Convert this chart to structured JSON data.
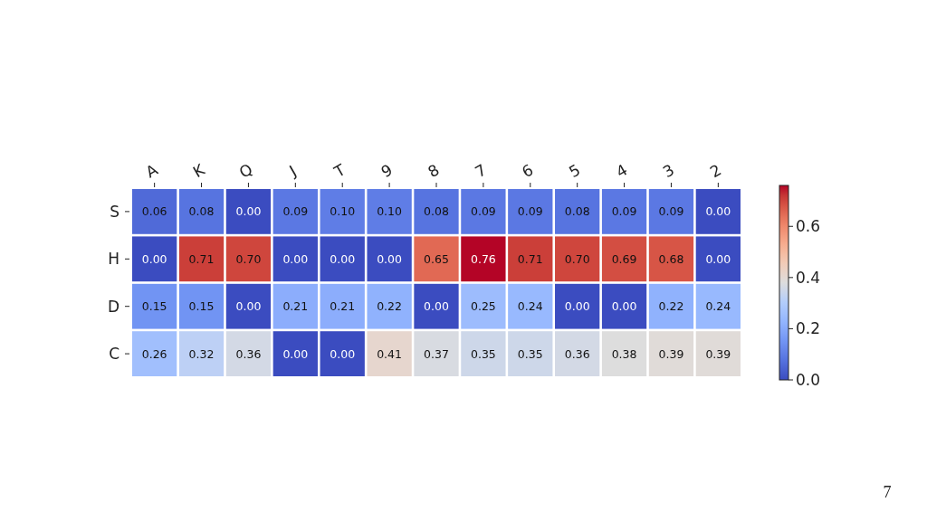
{
  "chart_data": {
    "type": "heatmap",
    "categories": [
      "A",
      "K",
      "Q",
      "J",
      "T",
      "9",
      "8",
      "7",
      "6",
      "5",
      "4",
      "3",
      "2"
    ],
    "y_categories": [
      "S",
      "H",
      "D",
      "C"
    ],
    "cells": [
      [
        0.06,
        0.08,
        0.0,
        0.09,
        0.1,
        0.1,
        0.08,
        0.09,
        0.09,
        0.08,
        0.09,
        0.09,
        0.0
      ],
      [
        0.0,
        0.71,
        0.7,
        0.0,
        0.0,
        0.0,
        0.65,
        0.76,
        0.71,
        0.7,
        0.69,
        0.68,
        0.0
      ],
      [
        0.15,
        0.15,
        0.0,
        0.21,
        0.21,
        0.22,
        0.0,
        0.25,
        0.24,
        0.0,
        0.0,
        0.22,
        0.24
      ],
      [
        0.26,
        0.32,
        0.36,
        0.0,
        0.0,
        0.41,
        0.37,
        0.35,
        0.35,
        0.36,
        0.38,
        0.39,
        0.39
      ]
    ],
    "cell_labels": [
      [
        "0.06",
        "0.08",
        "0.00",
        "0.09",
        "0.10",
        "0.10",
        "0.08",
        "0.09",
        "0.09",
        "0.08",
        "0.09",
        "0.09",
        "0.00"
      ],
      [
        "0.00",
        "0.71",
        "0.70",
        "0.00",
        "0.00",
        "0.00",
        "0.65",
        "0.76",
        "0.71",
        "0.70",
        "0.69",
        "0.68",
        "0.00"
      ],
      [
        "0.15",
        "0.15",
        "0.00",
        "0.21",
        "0.21",
        "0.22",
        "0.00",
        "0.25",
        "0.24",
        "0.00",
        "0.00",
        "0.22",
        "0.24"
      ],
      [
        "0.26",
        "0.32",
        "0.36",
        "0.00",
        "0.00",
        "0.41",
        "0.37",
        "0.35",
        "0.35",
        "0.36",
        "0.38",
        "0.39",
        "0.39"
      ]
    ],
    "clim": [
      0,
      0.76
    ],
    "cticks": [
      {
        "value": 0,
        "label": "0.0"
      },
      {
        "value": 0.2,
        "label": "0.2"
      },
      {
        "value": 0.4,
        "label": "0.4"
      },
      {
        "value": 0.6,
        "label": "0.6"
      }
    ],
    "annotations": [
      "7"
    ]
  }
}
